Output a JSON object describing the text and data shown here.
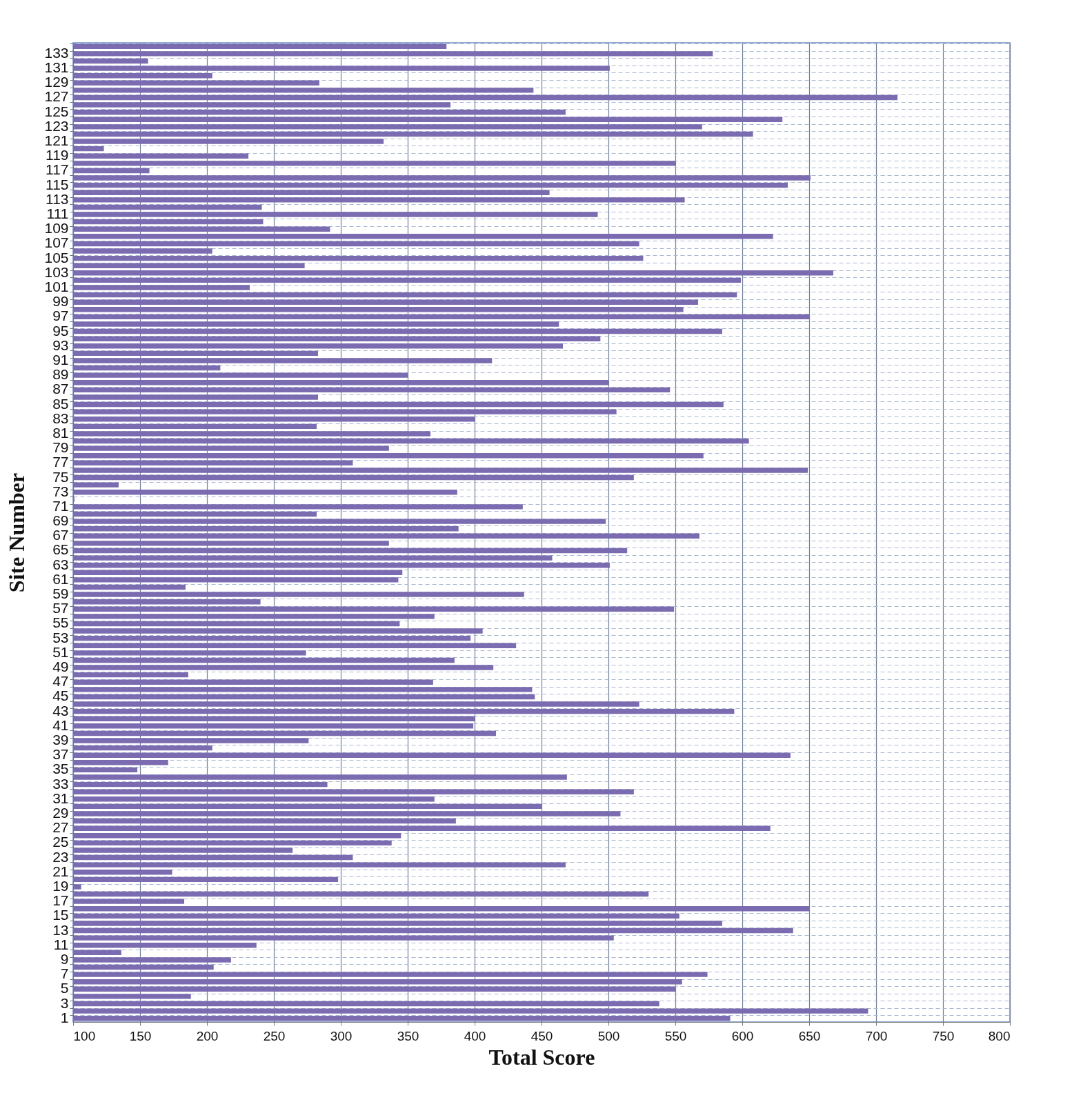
{
  "chart_data": {
    "type": "bar",
    "orientation": "horizontal",
    "xlabel": "Total Score",
    "ylabel": "Site Number",
    "categories": [
      null,
      "133",
      null,
      "131",
      null,
      "129",
      null,
      "127",
      null,
      "125",
      null,
      "123",
      null,
      "121",
      null,
      "119",
      null,
      "117",
      null,
      "115",
      null,
      "113",
      null,
      "111",
      null,
      "109",
      null,
      "107",
      null,
      "105",
      null,
      "103",
      null,
      "101",
      null,
      "99",
      null,
      "97",
      null,
      "95",
      null,
      "93",
      null,
      "91",
      null,
      "89",
      null,
      "87",
      null,
      "85",
      null,
      "83",
      null,
      "81",
      null,
      "79",
      null,
      "77",
      null,
      "75",
      null,
      "73",
      null,
      "71",
      null,
      "69",
      null,
      "67",
      null,
      "65",
      null,
      "63",
      null,
      "61",
      null,
      "59",
      null,
      "57",
      null,
      "55",
      null,
      "53",
      null,
      "51",
      null,
      "49",
      null,
      "47",
      null,
      "45",
      null,
      "43",
      null,
      "41",
      null,
      "39",
      null,
      "37",
      null,
      "35",
      null,
      "33",
      null,
      "31",
      null,
      "29",
      null,
      "27",
      null,
      "25",
      null,
      "23",
      null,
      "21",
      null,
      "19",
      null,
      "17",
      null,
      "15",
      null,
      "13",
      null,
      "11",
      null,
      "9",
      null,
      "7",
      null,
      "5",
      null,
      "3",
      null,
      "1"
    ],
    "values": [
      379,
      578,
      156,
      501,
      204,
      284,
      444,
      716,
      382,
      468,
      630,
      570,
      608,
      332,
      123,
      231,
      550,
      157,
      651,
      634,
      456,
      557,
      241,
      492,
      242,
      292,
      623,
      523,
      204,
      526,
      273,
      668,
      599,
      232,
      596,
      567,
      556,
      650,
      463,
      585,
      494,
      466,
      283,
      413,
      210,
      350,
      500,
      546,
      283,
      586,
      506,
      400,
      282,
      367,
      605,
      336,
      571,
      309,
      649,
      519,
      134,
      387,
      101,
      436,
      282,
      498,
      388,
      568,
      336,
      514,
      458,
      501,
      346,
      343,
      184,
      437,
      240,
      549,
      370,
      344,
      406,
      397,
      431,
      274,
      385,
      414,
      186,
      369,
      443,
      445,
      523,
      594,
      400,
      399,
      416,
      276,
      204,
      636,
      171,
      148,
      469,
      290,
      519,
      370,
      450,
      509,
      386,
      621,
      345,
      338,
      264,
      309,
      468,
      174,
      298,
      106,
      530,
      183,
      650,
      553,
      585,
      638,
      504,
      237,
      136,
      218,
      205,
      574,
      555,
      550,
      188,
      538,
      694,
      591
    ],
    "color": "#7b6bb0",
    "xlim": [
      100,
      800
    ],
    "xticks": [
      100,
      150,
      200,
      250,
      300,
      350,
      400,
      450,
      500,
      550,
      600,
      650,
      700,
      750,
      800
    ],
    "grid": true
  }
}
